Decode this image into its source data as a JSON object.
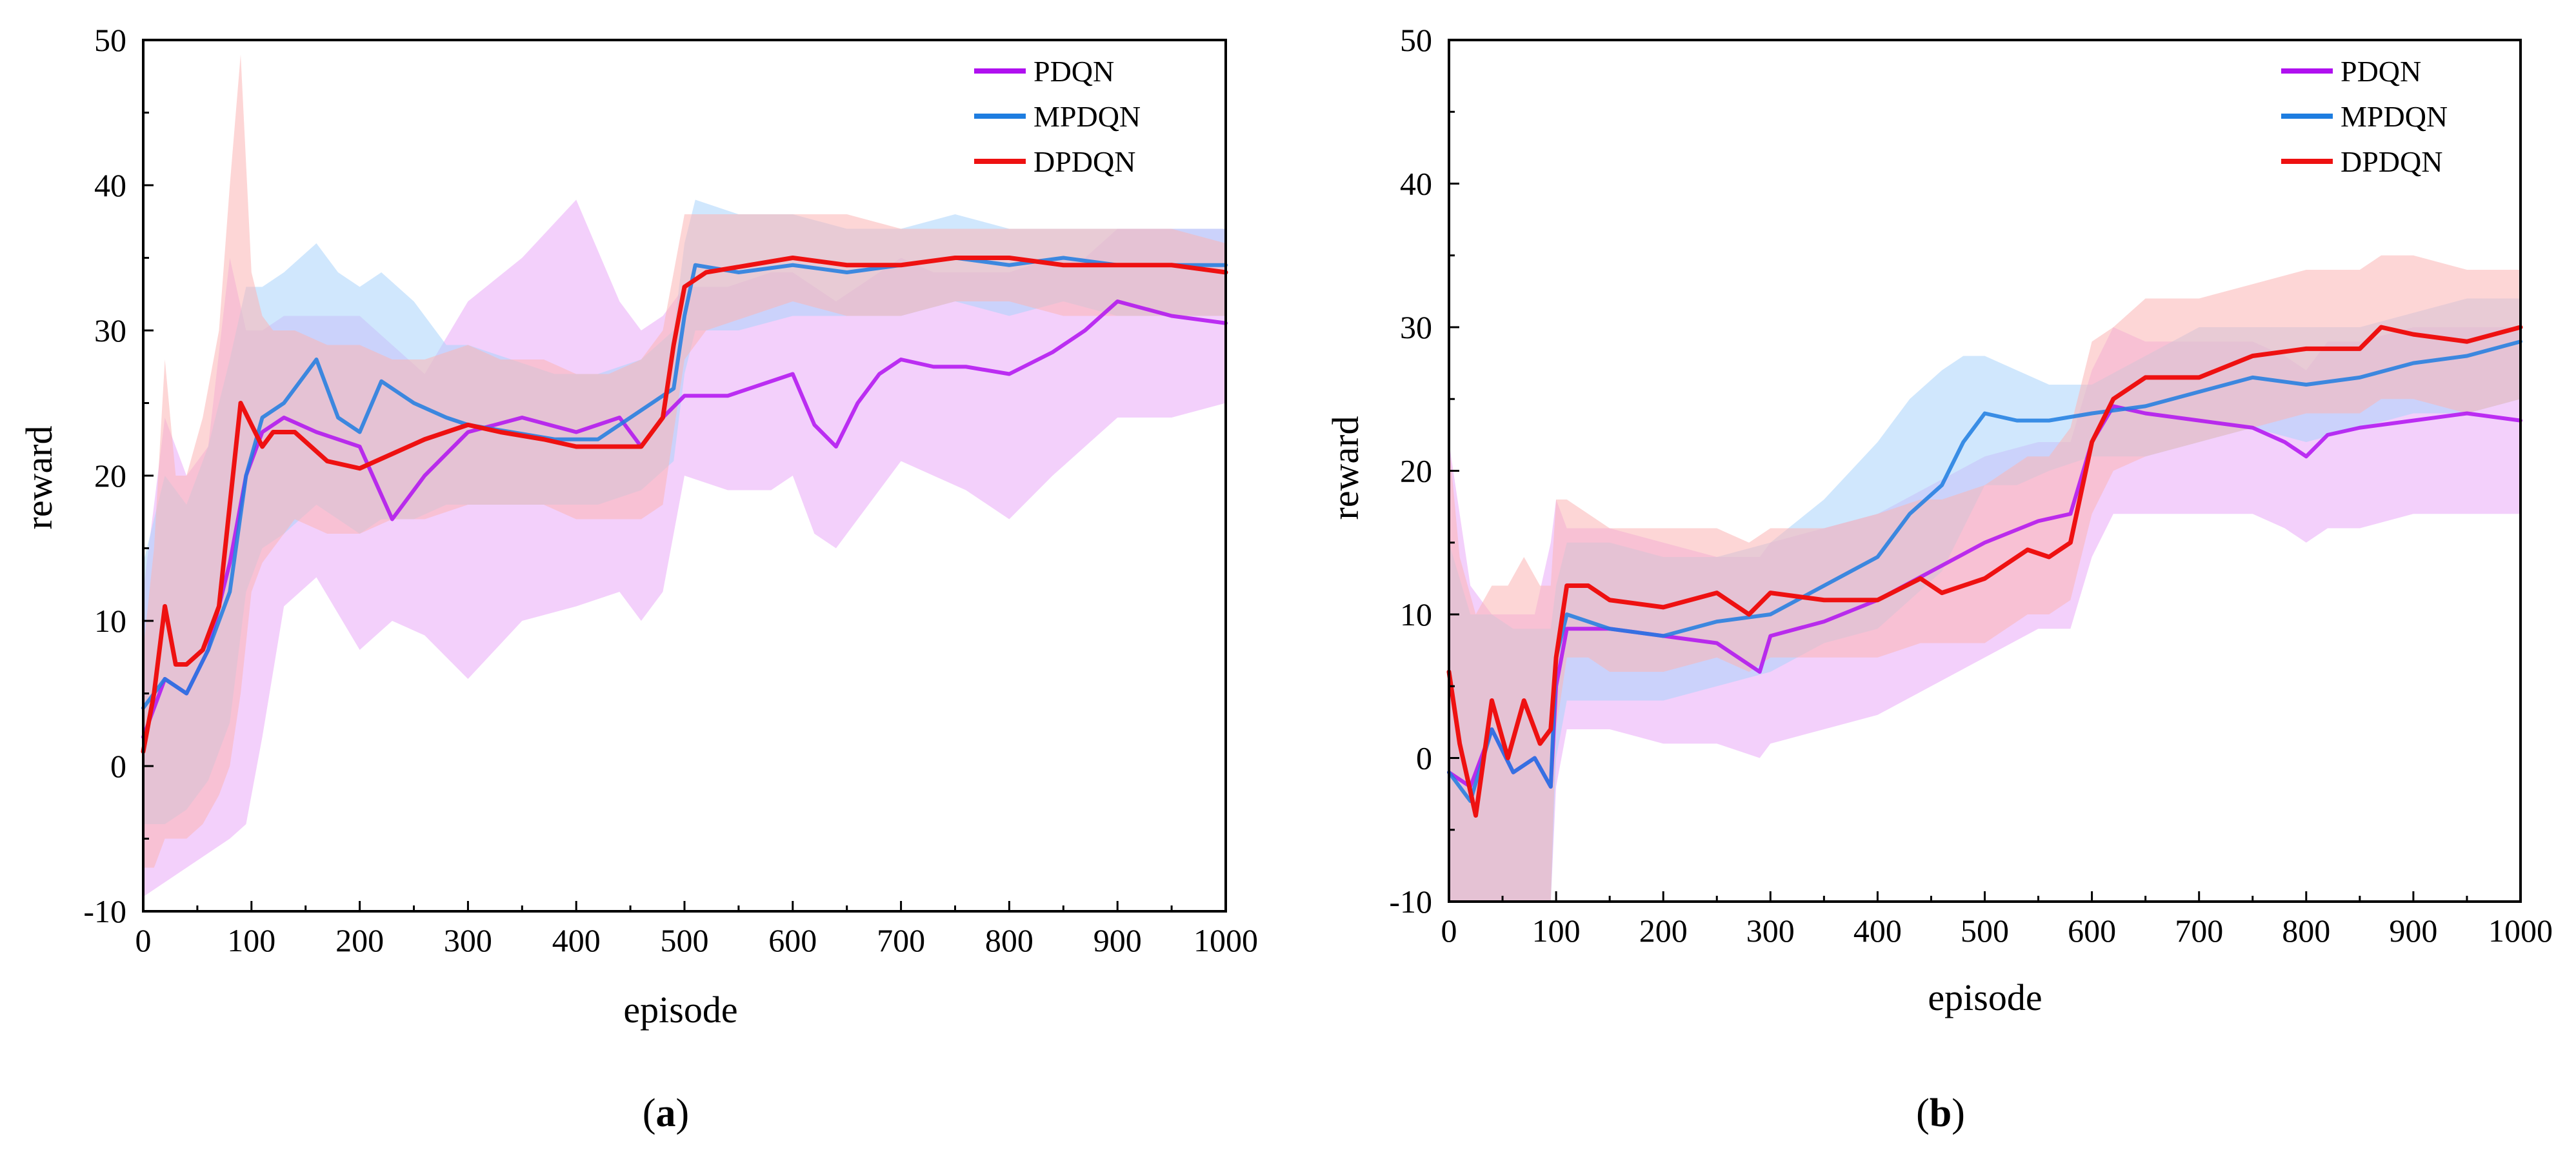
{
  "colors": {
    "PDQN": "#b010f0",
    "MPDQN": "#1e7de0",
    "DPDQN": "#ee1111",
    "band_PDQN": "#e9a9f7",
    "band_MPDQN": "#a9d4fb",
    "band_DPDQN": "#fbb4b4"
  },
  "chart_data": [
    {
      "type": "line",
      "caption": "a",
      "xlabel": "episode",
      "ylabel": "reward",
      "xlim": [
        0,
        1000
      ],
      "ylim": [
        -10,
        50
      ],
      "xticks": [
        0,
        100,
        200,
        300,
        400,
        500,
        600,
        700,
        800,
        900,
        1000
      ],
      "yticks": [
        -10,
        0,
        10,
        20,
        30,
        40,
        50
      ],
      "legend": [
        "PDQN",
        "MPDQN",
        "DPDQN"
      ],
      "legend_position": "top-right",
      "series": [
        {
          "name": "PDQN",
          "x": [
            0,
            20,
            40,
            60,
            80,
            95,
            110,
            130,
            160,
            200,
            230,
            260,
            300,
            350,
            400,
            440,
            460,
            480,
            500,
            540,
            580,
            600,
            620,
            640,
            660,
            680,
            700,
            730,
            760,
            800,
            840,
            870,
            900,
            950,
            1000
          ],
          "y": [
            2,
            6,
            5,
            8,
            14,
            20,
            23,
            24,
            23,
            22,
            17,
            20,
            23,
            24,
            23,
            24,
            22,
            24,
            25.5,
            25.5,
            26.5,
            27,
            23.5,
            22,
            25,
            27,
            28,
            27.5,
            27.5,
            27,
            28.5,
            30,
            32,
            31,
            30.5
          ],
          "band": {
            "upper": [
              12,
              24,
              20,
              22,
              35,
              30,
              30,
              31,
              31,
              31,
              29,
              27,
              32,
              35,
              39,
              32,
              30,
              31,
              33,
              33,
              34,
              34,
              33,
              32,
              33,
              34,
              35,
              34,
              34,
              34,
              35,
              35,
              37,
              37,
              37
            ],
            "lower": [
              -9,
              -8,
              -7,
              -6,
              -5,
              -4,
              2,
              11,
              13,
              8,
              10,
              9,
              6,
              10,
              11,
              12,
              10,
              12,
              20,
              19,
              19,
              20,
              16,
              15,
              17,
              19,
              21,
              20,
              19,
              17,
              20,
              22,
              24,
              24,
              25
            ]
          }
        },
        {
          "name": "MPDQN",
          "x": [
            0,
            20,
            40,
            60,
            80,
            95,
            110,
            130,
            160,
            180,
            200,
            220,
            250,
            280,
            300,
            340,
            380,
            420,
            460,
            490,
            500,
            510,
            550,
            600,
            650,
            700,
            750,
            800,
            850,
            900,
            950,
            1000
          ],
          "y": [
            4,
            6,
            5,
            8,
            12,
            20,
            24,
            25,
            28,
            24,
            23,
            26.5,
            25,
            24,
            23.5,
            23,
            22.5,
            22.5,
            24.5,
            26,
            31,
            34.5,
            34,
            34.5,
            34,
            34.5,
            35,
            34.5,
            35,
            34.5,
            34.5,
            34.5
          ],
          "band": {
            "upper": [
              14,
              20,
              18,
              22,
              28,
              33,
              33,
              34,
              36,
              34,
              33,
              34,
              32,
              29,
              29,
              28,
              27,
              27,
              28,
              30,
              36,
              39,
              38,
              38,
              37,
              37,
              38,
              37,
              37,
              37,
              37,
              37
            ],
            "lower": [
              -4,
              -4,
              -3,
              -1,
              3,
              12,
              15,
              16,
              18,
              17,
              16,
              17,
              17,
              18,
              18,
              18,
              18,
              18,
              19,
              21,
              27,
              30,
              30,
              31,
              31,
              31,
              32,
              31,
              32,
              31,
              31,
              31
            ]
          }
        },
        {
          "name": "DPDQN",
          "x": [
            0,
            10,
            20,
            30,
            40,
            55,
            70,
            80,
            90,
            100,
            110,
            120,
            140,
            170,
            200,
            230,
            260,
            300,
            330,
            370,
            400,
            430,
            460,
            480,
            490,
            500,
            520,
            560,
            600,
            650,
            700,
            750,
            800,
            850,
            900,
            950,
            1000
          ],
          "y": [
            1,
            5,
            11,
            7,
            7,
            8,
            11,
            18,
            25,
            23.5,
            22,
            23,
            23,
            21,
            20.5,
            21.5,
            22.5,
            23.5,
            23,
            22.5,
            22,
            22,
            22,
            24,
            29,
            33,
            34,
            34.5,
            35,
            34.5,
            34.5,
            35,
            35,
            34.5,
            34.5,
            34.5,
            34
          ],
          "band": {
            "upper": [
              8,
              15,
              28,
              20,
              20,
              24,
              30,
              40,
              49,
              34,
              31,
              30,
              30,
              29,
              29,
              28,
              28,
              29,
              28,
              28,
              27,
              27,
              28,
              30,
              34,
              38,
              38,
              38,
              38,
              38,
              37,
              37,
              37,
              37,
              37,
              37,
              36
            ],
            "lower": [
              -7,
              -7,
              -5,
              -5,
              -5,
              -4,
              -2,
              0,
              5,
              12,
              14,
              15,
              17,
              16,
              16,
              17,
              17,
              18,
              18,
              18,
              17,
              17,
              17,
              18,
              23,
              28,
              30,
              31,
              32,
              31,
              31,
              32,
              32,
              31,
              31,
              31,
              31
            ]
          }
        }
      ]
    },
    {
      "type": "line",
      "caption": "b",
      "xlabel": "episode",
      "ylabel": "reward",
      "xlim": [
        0,
        1000
      ],
      "ylim": [
        -10,
        50
      ],
      "xticks": [
        0,
        100,
        200,
        300,
        400,
        500,
        600,
        700,
        800,
        900,
        1000
      ],
      "yticks": [
        -10,
        0,
        10,
        20,
        30,
        40,
        50
      ],
      "legend": [
        "PDQN",
        "MPDQN",
        "DPDQN"
      ],
      "legend_position": "top-right",
      "series": [
        {
          "name": "PDQN",
          "x": [
            0,
            20,
            40,
            60,
            80,
            95,
            100,
            110,
            150,
            200,
            250,
            290,
            300,
            350,
            400,
            450,
            500,
            550,
            580,
            600,
            620,
            650,
            700,
            750,
            780,
            800,
            820,
            850,
            900,
            950,
            1000
          ],
          "y": [
            -1,
            -2,
            2,
            -1,
            0,
            -2,
            5,
            9,
            9,
            8.5,
            8,
            6,
            8.5,
            9.5,
            11,
            13,
            15,
            16.5,
            17,
            22,
            24.5,
            24,
            23.5,
            23,
            22,
            21,
            22.5,
            23,
            23.5,
            24,
            23.5
          ],
          "band": {
            "upper": [
              22,
              12,
              10,
              10,
              10,
              15,
              18,
              16,
              16,
              15,
              14,
              14,
              15,
              16,
              17,
              19,
              21,
              22,
              22,
              27,
              30,
              29,
              29,
              29,
              28,
              27,
              29,
              29,
              30,
              30,
              30
            ],
            "lower": [
              -10,
              -10,
              -10,
              -10,
              -10,
              -10,
              -2,
              2,
              2,
              1,
              1,
              0,
              1,
              2,
              3,
              5,
              7,
              9,
              9,
              14,
              17,
              17,
              17,
              17,
              16,
              15,
              16,
              16,
              17,
              17,
              17
            ]
          }
        },
        {
          "name": "MPDQN",
          "x": [
            0,
            20,
            40,
            60,
            80,
            95,
            100,
            110,
            150,
            200,
            250,
            300,
            350,
            400,
            430,
            460,
            480,
            500,
            530,
            560,
            600,
            650,
            700,
            750,
            800,
            850,
            900,
            950,
            1000
          ],
          "y": [
            -1,
            -3,
            2,
            -1,
            0,
            -2,
            7,
            10,
            9,
            8.5,
            9.5,
            10,
            12,
            14,
            17,
            19,
            22,
            24,
            23.5,
            23.5,
            24,
            24.5,
            25.5,
            26.5,
            26,
            26.5,
            27.5,
            28,
            29
          ],
          "band": {
            "upper": [
              15,
              10,
              10,
              9,
              9,
              9,
              12,
              15,
              15,
              14,
              14,
              15,
              18,
              22,
              25,
              27,
              28,
              28,
              27,
              26,
              26,
              28,
              30,
              30,
              30,
              30,
              31,
              32,
              32
            ],
            "lower": [
              -10,
              -10,
              -10,
              -10,
              -10,
              -10,
              0,
              4,
              4,
              4,
              5,
              6,
              8,
              9,
              11,
              13,
              16,
              19,
              19,
              20,
              21,
              21,
              22,
              23,
              22,
              23,
              24,
              24,
              25
            ]
          }
        },
        {
          "name": "DPDQN",
          "x": [
            0,
            10,
            25,
            40,
            55,
            70,
            85,
            95,
            100,
            110,
            130,
            150,
            200,
            250,
            280,
            300,
            350,
            400,
            440,
            460,
            500,
            540,
            560,
            580,
            600,
            620,
            650,
            700,
            750,
            800,
            850,
            870,
            900,
            950,
            1000
          ],
          "y": [
            6,
            1,
            -4,
            4,
            0,
            4,
            1,
            2,
            7,
            12,
            12,
            11,
            10.5,
            11.5,
            10,
            11.5,
            11,
            11,
            12.5,
            11.5,
            12.5,
            14.5,
            14,
            15,
            22,
            25,
            26.5,
            26.5,
            28,
            28.5,
            28.5,
            30,
            29.5,
            29,
            30
          ],
          "band": {
            "upper": [
              22,
              14,
              10,
              12,
              12,
              14,
              12,
              12,
              18,
              18,
              17,
              16,
              16,
              16,
              15,
              16,
              16,
              17,
              18,
              18,
              19,
              21,
              21,
              23,
              29,
              30,
              32,
              32,
              33,
              34,
              34,
              35,
              35,
              34,
              34
            ],
            "lower": [
              -10,
              -10,
              -10,
              -10,
              -10,
              -10,
              -10,
              -10,
              2,
              7,
              7,
              6,
              6,
              7,
              6,
              7,
              7,
              7,
              8,
              8,
              8,
              10,
              10,
              11,
              17,
              20,
              21,
              22,
              23,
              24,
              24,
              25,
              25,
              24,
              25
            ]
          }
        }
      ]
    }
  ]
}
